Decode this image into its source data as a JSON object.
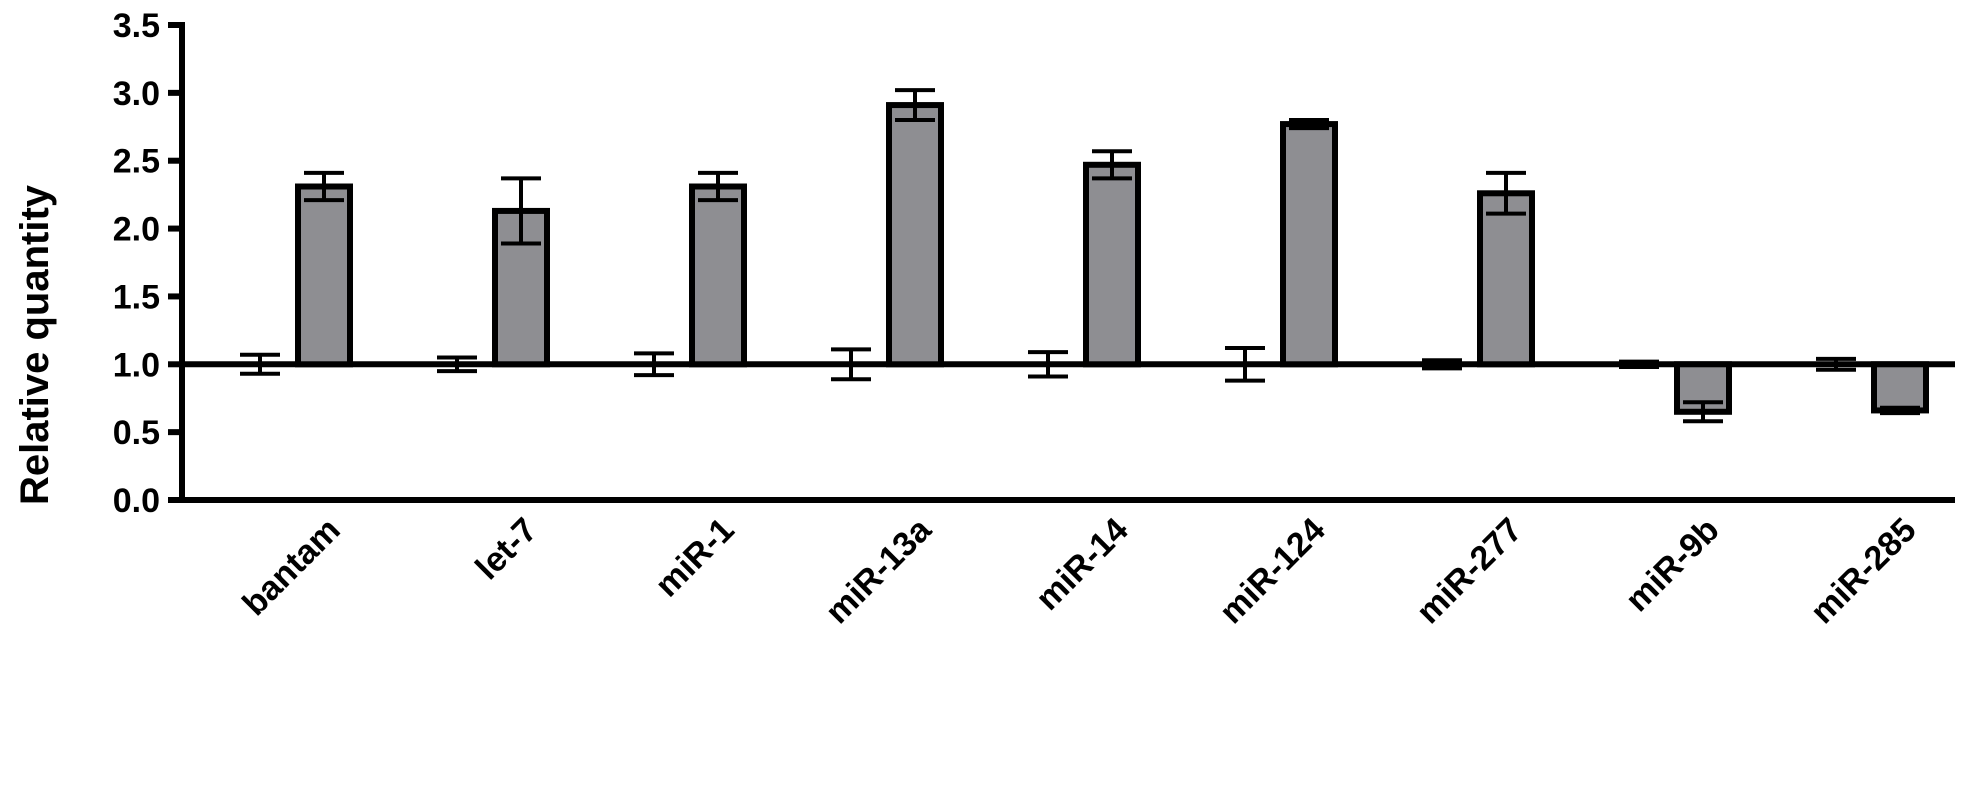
{
  "chart_data": {
    "type": "bar",
    "ylabel": "Relative quantity",
    "xlabel": "",
    "ylim": [
      0,
      3.5
    ],
    "yticks": [
      "0.0",
      "0.5",
      "1.0",
      "1.5",
      "2.0",
      "2.5",
      "3.0",
      "3.5"
    ],
    "baseline": 1.0,
    "categories": [
      "bantam",
      "let-7",
      "miR-1",
      "miR-13a",
      "miR-14",
      "miR-124",
      "miR-277",
      "miR-9b",
      "miR-285"
    ],
    "series": [
      {
        "values": [
          1.0,
          1.0,
          1.0,
          1.0,
          1.0,
          1.0,
          1.0,
          1.0,
          1.0
        ],
        "errors": [
          0.07,
          0.05,
          0.08,
          0.11,
          0.09,
          0.12,
          0.03,
          0.02,
          0.04
        ],
        "color": "#8e8e92"
      },
      {
        "values": [
          2.31,
          2.13,
          2.31,
          2.91,
          2.47,
          2.77,
          2.26,
          0.65,
          0.66
        ],
        "errors": [
          0.1,
          0.24,
          0.1,
          0.11,
          0.1,
          0.03,
          0.15,
          0.07,
          0.02
        ],
        "color": "#8e8e92"
      }
    ],
    "grid": false,
    "legend": "none"
  }
}
